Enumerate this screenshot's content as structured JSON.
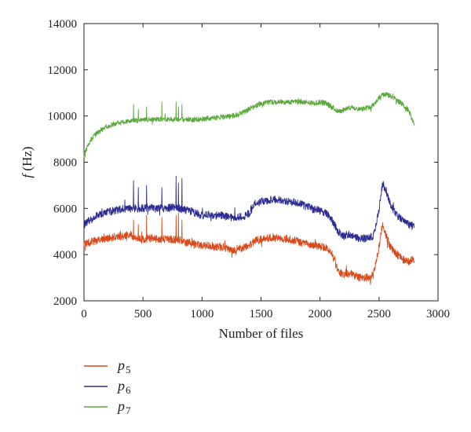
{
  "chart_data": {
    "type": "line",
    "title": "",
    "xlabel": "Number of files",
    "ylabel_italic": "f",
    "ylabel_unit": " (Hz)",
    "xlim": [
      0,
      3000
    ],
    "ylim": [
      2000,
      14000
    ],
    "xticks": [
      0,
      500,
      1000,
      1500,
      2000,
      2500,
      3000
    ],
    "yticks": [
      2000,
      4000,
      6000,
      8000,
      10000,
      12000,
      14000
    ],
    "grid": false,
    "legend_position": "below-left",
    "series": [
      {
        "name": "p",
        "sub": "5",
        "color": "#d84a1b",
        "x": [
          0,
          50,
          100,
          150,
          200,
          250,
          300,
          350,
          400,
          450,
          500,
          550,
          600,
          650,
          700,
          750,
          800,
          850,
          900,
          950,
          1000,
          1050,
          1100,
          1150,
          1200,
          1250,
          1300,
          1350,
          1400,
          1450,
          1500,
          1550,
          1600,
          1650,
          1700,
          1750,
          1800,
          1850,
          1900,
          1950,
          2000,
          2050,
          2100,
          2150,
          2200,
          2250,
          2300,
          2350,
          2400,
          2450,
          2500,
          2530,
          2560,
          2600,
          2650,
          2700,
          2750,
          2800
        ],
        "y": [
          4450,
          4550,
          4600,
          4650,
          4700,
          4750,
          4800,
          4800,
          4850,
          4700,
          4650,
          4700,
          4700,
          4650,
          4700,
          4650,
          4650,
          4550,
          4500,
          4450,
          4400,
          4400,
          4350,
          4350,
          4300,
          4200,
          4250,
          4300,
          4400,
          4600,
          4650,
          4700,
          4750,
          4700,
          4700,
          4650,
          4600,
          4500,
          4450,
          4400,
          4350,
          4300,
          4100,
          3300,
          3100,
          3200,
          3050,
          3000,
          3000,
          3100,
          4300,
          5400,
          4800,
          4300,
          4000,
          3800,
          3700,
          3800
        ],
        "spikes": [
          [
            420,
            5500
          ],
          [
            460,
            5300
          ],
          [
            530,
            5700
          ],
          [
            660,
            5600
          ],
          [
            780,
            5700
          ],
          [
            800,
            5800
          ],
          [
            830,
            5500
          ]
        ]
      },
      {
        "name": "p",
        "sub": "6",
        "color": "#2c2b91",
        "x": [
          0,
          50,
          100,
          150,
          200,
          250,
          300,
          350,
          400,
          450,
          500,
          550,
          600,
          650,
          700,
          750,
          800,
          850,
          900,
          950,
          1000,
          1050,
          1100,
          1150,
          1200,
          1250,
          1300,
          1350,
          1400,
          1450,
          1500,
          1550,
          1600,
          1650,
          1700,
          1750,
          1800,
          1850,
          1900,
          1950,
          2000,
          2050,
          2100,
          2150,
          2200,
          2250,
          2300,
          2350,
          2400,
          2450,
          2500,
          2530,
          2560,
          2600,
          2650,
          2700,
          2750,
          2800
        ],
        "y": [
          5300,
          5500,
          5650,
          5750,
          5850,
          5900,
          5950,
          6000,
          6000,
          6000,
          6000,
          6050,
          6000,
          6000,
          6000,
          6050,
          6000,
          5950,
          5900,
          5800,
          5700,
          5750,
          5700,
          5700,
          5650,
          5600,
          5650,
          5650,
          5800,
          6200,
          6300,
          6350,
          6400,
          6350,
          6350,
          6300,
          6250,
          6150,
          6050,
          5950,
          5900,
          5800,
          5500,
          5000,
          4800,
          4900,
          4750,
          4700,
          4700,
          4800,
          5900,
          7100,
          6700,
          6100,
          5700,
          5500,
          5300,
          5200
        ],
        "spikes": [
          [
            420,
            7200
          ],
          [
            460,
            6900
          ],
          [
            530,
            7000
          ],
          [
            660,
            6900
          ],
          [
            780,
            7400
          ],
          [
            800,
            7100
          ],
          [
            830,
            7300
          ]
        ]
      },
      {
        "name": "p",
        "sub": "7",
        "color": "#5aa83b",
        "x": [
          0,
          50,
          100,
          150,
          200,
          250,
          300,
          350,
          400,
          450,
          500,
          550,
          600,
          650,
          700,
          750,
          800,
          850,
          900,
          950,
          1000,
          1050,
          1100,
          1150,
          1200,
          1250,
          1300,
          1350,
          1400,
          1450,
          1500,
          1550,
          1600,
          1650,
          1700,
          1750,
          1800,
          1850,
          1900,
          1950,
          2000,
          2050,
          2100,
          2150,
          2200,
          2250,
          2300,
          2350,
          2400,
          2450,
          2500,
          2530,
          2560,
          2600,
          2650,
          2700,
          2750,
          2800
        ],
        "y": [
          8300,
          8900,
          9200,
          9400,
          9550,
          9650,
          9700,
          9750,
          9800,
          9800,
          9800,
          9850,
          9850,
          9850,
          9850,
          9850,
          9850,
          9850,
          9850,
          9850,
          9850,
          9900,
          9900,
          9950,
          9950,
          10000,
          10050,
          10150,
          10300,
          10450,
          10550,
          10600,
          10600,
          10600,
          10600,
          10600,
          10600,
          10600,
          10600,
          10550,
          10600,
          10550,
          10400,
          10200,
          10250,
          10350,
          10300,
          10300,
          10350,
          10450,
          10800,
          10900,
          10950,
          10850,
          10700,
          10500,
          10250,
          9600
        ],
        "spikes": [
          [
            420,
            10500
          ],
          [
            460,
            10300
          ],
          [
            530,
            10400
          ],
          [
            660,
            10600
          ],
          [
            780,
            10600
          ],
          [
            800,
            10400
          ],
          [
            830,
            10500
          ]
        ]
      }
    ]
  }
}
